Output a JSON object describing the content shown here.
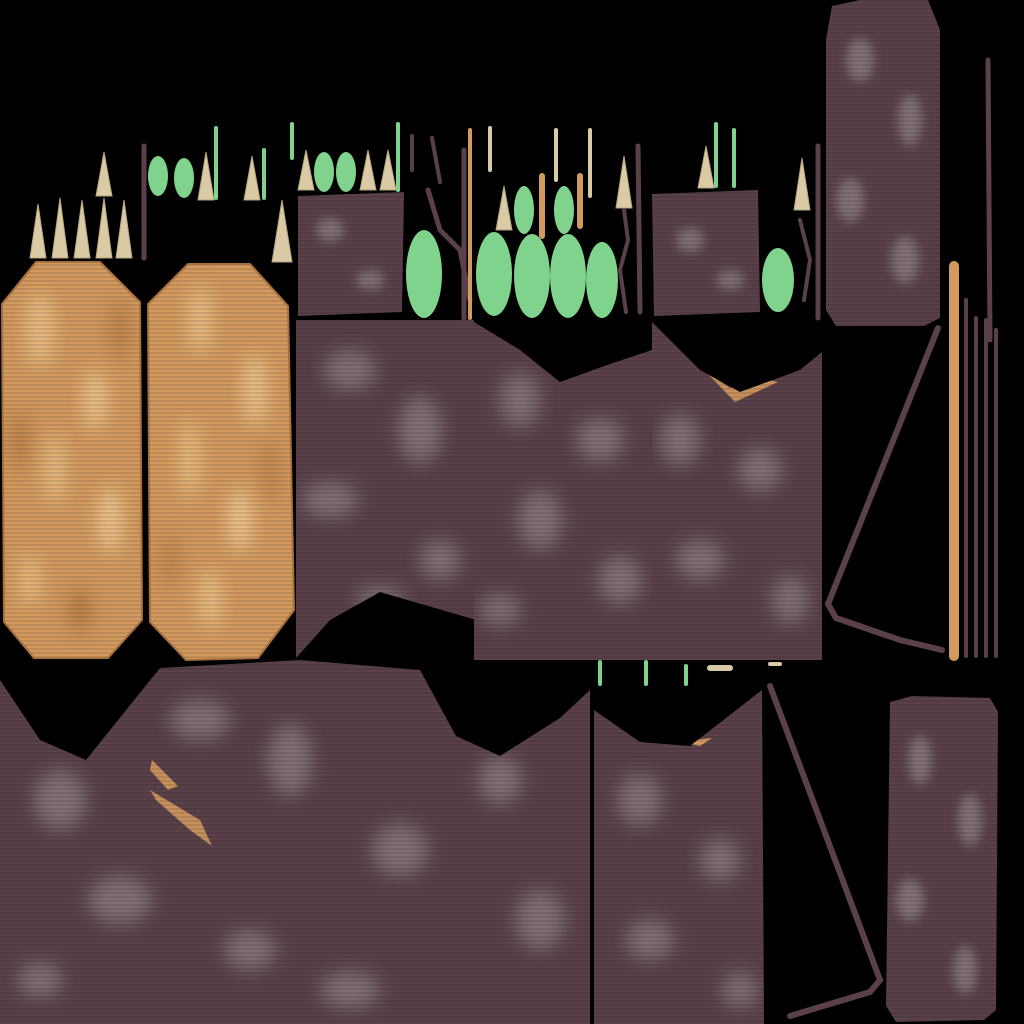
{
  "atlas": {
    "palette": {
      "background": "#000000",
      "bark": "#5a4149",
      "bark_light": "#8c7a84",
      "bark_dark": "#3e2c33",
      "wood": "#d29a5f",
      "wood_light": "#e8bb86",
      "wood_dark": "#b37a45",
      "leaf": "#7fd38c",
      "leaf_dark": "#4aa35e",
      "thorn": "#dacba6",
      "thorn_dark": "#b6a57c"
    },
    "regions": [
      {
        "name": "wood-panel-left",
        "material": "wood"
      },
      {
        "name": "wood-panel-right",
        "material": "wood"
      },
      {
        "name": "bark-panel-large",
        "material": "bark"
      },
      {
        "name": "bark-panel-tall",
        "material": "bark"
      },
      {
        "name": "leaf-strip",
        "material": "leaf"
      },
      {
        "name": "thorn-strip",
        "material": "thorn"
      },
      {
        "name": "stick-strip",
        "material": "bark"
      }
    ]
  }
}
